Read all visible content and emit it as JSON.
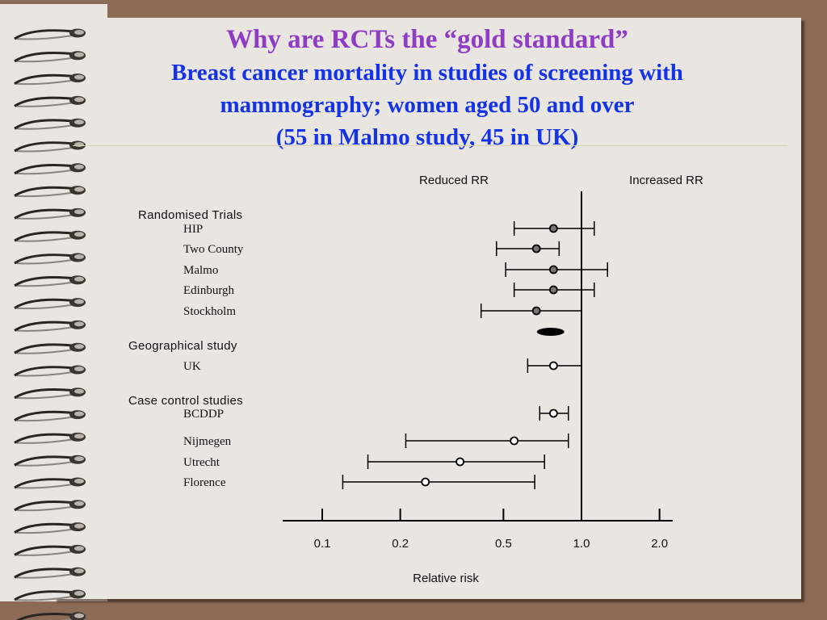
{
  "slide": {
    "title": "Why are RCTs the “gold standard”",
    "subtitle_lines": [
      "Breast cancer mortality in studies of screening with",
      "mammography; women aged 50 and over",
      "(55 in Malmo study, 45 in UK)"
    ]
  },
  "colors": {
    "title": "#8E3CC4",
    "subtitle": "#1432E6",
    "background": "#8B6B55",
    "paper": "#E9E5E1",
    "filled_marker": "#7A7470",
    "open_marker": "#FFFFFF"
  },
  "chart_data": {
    "type": "forest",
    "xlabel": "Relative risk",
    "x_scale": "log",
    "xlim": [
      0.075,
      2.4
    ],
    "x_ticks": [
      {
        "value": 0.1,
        "label": "0.1"
      },
      {
        "value": 0.2,
        "label": "0.2"
      },
      {
        "value": 0.5,
        "label": "0.5"
      },
      {
        "value": 1.0,
        "label": "1.0"
      },
      {
        "value": 2.0,
        "label": "2.0"
      }
    ],
    "reference_value": 1.0,
    "direction_labels": {
      "left": "Reduced RR",
      "right": "Increased RR"
    },
    "groups": [
      {
        "label": "Randomised Trials",
        "marker": "filled",
        "studies": [
          {
            "name": "HIP",
            "rr": 0.78,
            "ci": [
              0.55,
              1.12
            ]
          },
          {
            "name": "Two County",
            "rr": 0.67,
            "ci": [
              0.47,
              0.82
            ]
          },
          {
            "name": "Malmo",
            "rr": 0.78,
            "ci": [
              0.51,
              1.26
            ]
          },
          {
            "name": "Edinburgh",
            "rr": 0.78,
            "ci": [
              0.55,
              1.12
            ]
          },
          {
            "name": "Stockholm",
            "rr": 0.67,
            "ci": [
              0.41,
              1.0
            ]
          }
        ],
        "pooled": {
          "rr": 0.76
        }
      },
      {
        "label": "Geographical study",
        "marker": "open",
        "studies": [
          {
            "name": "UK",
            "rr": 0.78,
            "ci": [
              0.62,
              1.0
            ]
          }
        ]
      },
      {
        "label": "Case control studies",
        "marker": "open",
        "studies": [
          {
            "name": "BCDDP",
            "rr": 0.78,
            "ci": [
              0.69,
              0.89
            ]
          },
          {
            "name": "Nijmegen",
            "rr": 0.55,
            "ci": [
              0.21,
              0.89
            ]
          },
          {
            "name": "Utrecht",
            "rr": 0.34,
            "ci": [
              0.15,
              0.72
            ]
          },
          {
            "name": "Florence",
            "rr": 0.25,
            "ci": [
              0.12,
              0.66
            ]
          }
        ]
      }
    ]
  }
}
